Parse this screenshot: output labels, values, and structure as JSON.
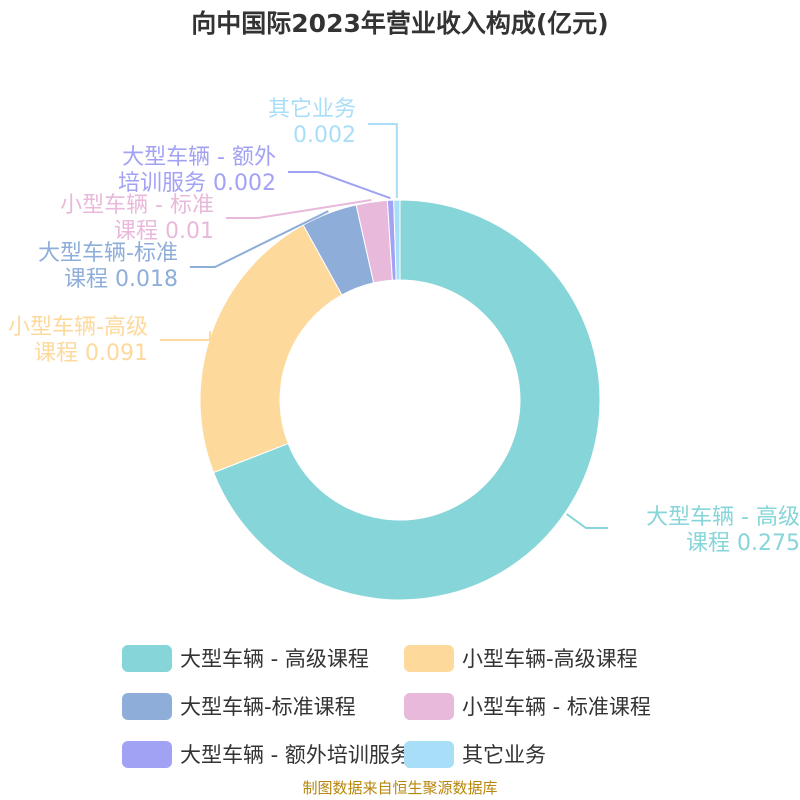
{
  "chart_data": {
    "type": "pie",
    "title": "向中国际2023年营业收入构成(亿元)",
    "donut": true,
    "legend_position": "bottom",
    "slices": [
      {
        "name": "大型车辆 - 高级课程",
        "value": 0.275,
        "color": "#86d5d9",
        "label_lines": [
          "大型车辆 - 高级",
          "课程 0.275"
        ]
      },
      {
        "name": "小型车辆-高级课程",
        "value": 0.091,
        "color": "#fdd99b",
        "label_lines": [
          "小型车辆-高级",
          "课程 0.091"
        ]
      },
      {
        "name": "大型车辆-标准课程",
        "value": 0.018,
        "color": "#8eaed9",
        "label_lines": [
          "大型车辆-标准",
          "课程 0.018"
        ]
      },
      {
        "name": "小型车辆 - 标准课程",
        "value": 0.01,
        "color": "#e8b9da",
        "label_lines": [
          "小型车辆 - 标准",
          "课程 0.01"
        ]
      },
      {
        "name": "大型车辆 - 额外培训服务",
        "value": 0.002,
        "color": "#a2a2f5",
        "label_lines": [
          "大型车辆 - 额外",
          "培训服务 0.002"
        ]
      },
      {
        "name": "其它业务",
        "value": 0.002,
        "color": "#a8def7",
        "label_lines": [
          "其它业务",
          "0.002"
        ]
      }
    ]
  },
  "footer": {
    "source": "制图数据来自恒生聚源数据库"
  }
}
